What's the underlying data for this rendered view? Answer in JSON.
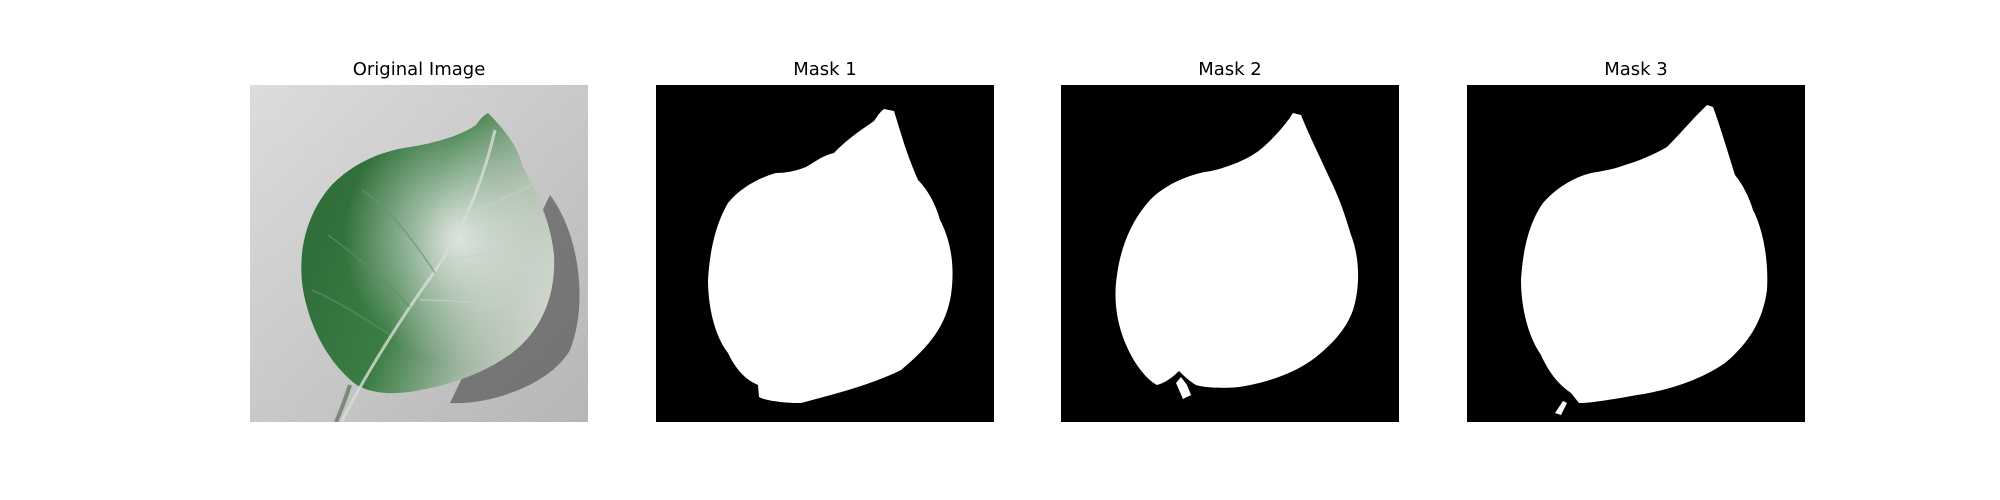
{
  "panels": [
    {
      "title": "Original Image"
    },
    {
      "title": "Mask 1"
    },
    {
      "title": "Mask 2"
    },
    {
      "title": "Mask 3"
    }
  ],
  "colors": {
    "background": "#ffffff",
    "mask_background": "#000000",
    "mask_foreground": "#ffffff",
    "leaf_green": "#2f6a3a",
    "surface_gray": "#c9c9c9"
  }
}
